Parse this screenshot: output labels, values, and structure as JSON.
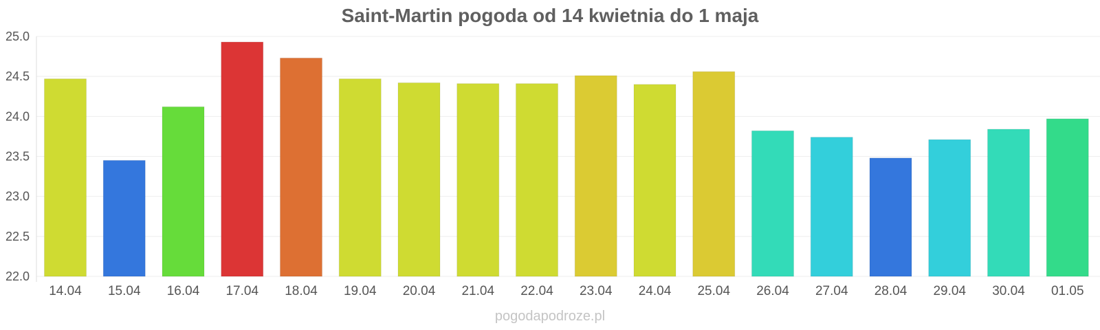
{
  "chart_data": {
    "type": "bar",
    "title": "Saint-Martin pogoda od 14 kwietnia do 1 maja",
    "xlabel": "",
    "ylabel": "",
    "categories": [
      "14.04",
      "15.04",
      "16.04",
      "17.04",
      "18.04",
      "19.04",
      "20.04",
      "21.04",
      "22.04",
      "23.04",
      "24.04",
      "25.04",
      "26.04",
      "27.04",
      "28.04",
      "29.04",
      "30.04",
      "01.05"
    ],
    "values": [
      24.47,
      23.45,
      24.12,
      24.93,
      24.73,
      24.47,
      24.42,
      24.41,
      24.41,
      24.51,
      24.4,
      24.56,
      23.82,
      23.74,
      23.48,
      23.71,
      23.84,
      23.97
    ],
    "colors": [
      "#cfdb32",
      "#3477dd",
      "#66dc3a",
      "#dc3535",
      "#dd7033",
      "#cfdb32",
      "#cfdb32",
      "#cfdb32",
      "#cfdb32",
      "#dbcb33",
      "#cfdb32",
      "#dbca33",
      "#33dbb8",
      "#33cfdb",
      "#3477dd",
      "#33cfdb",
      "#33dbb8",
      "#33db8a"
    ],
    "ylim": [
      22.0,
      25.0
    ],
    "yticks": [
      "22.0",
      "22.5",
      "23.0",
      "23.5",
      "24.0",
      "24.5",
      "25.0"
    ],
    "grid": true,
    "legend": "none"
  },
  "watermark": "pogodapodroze.pl"
}
